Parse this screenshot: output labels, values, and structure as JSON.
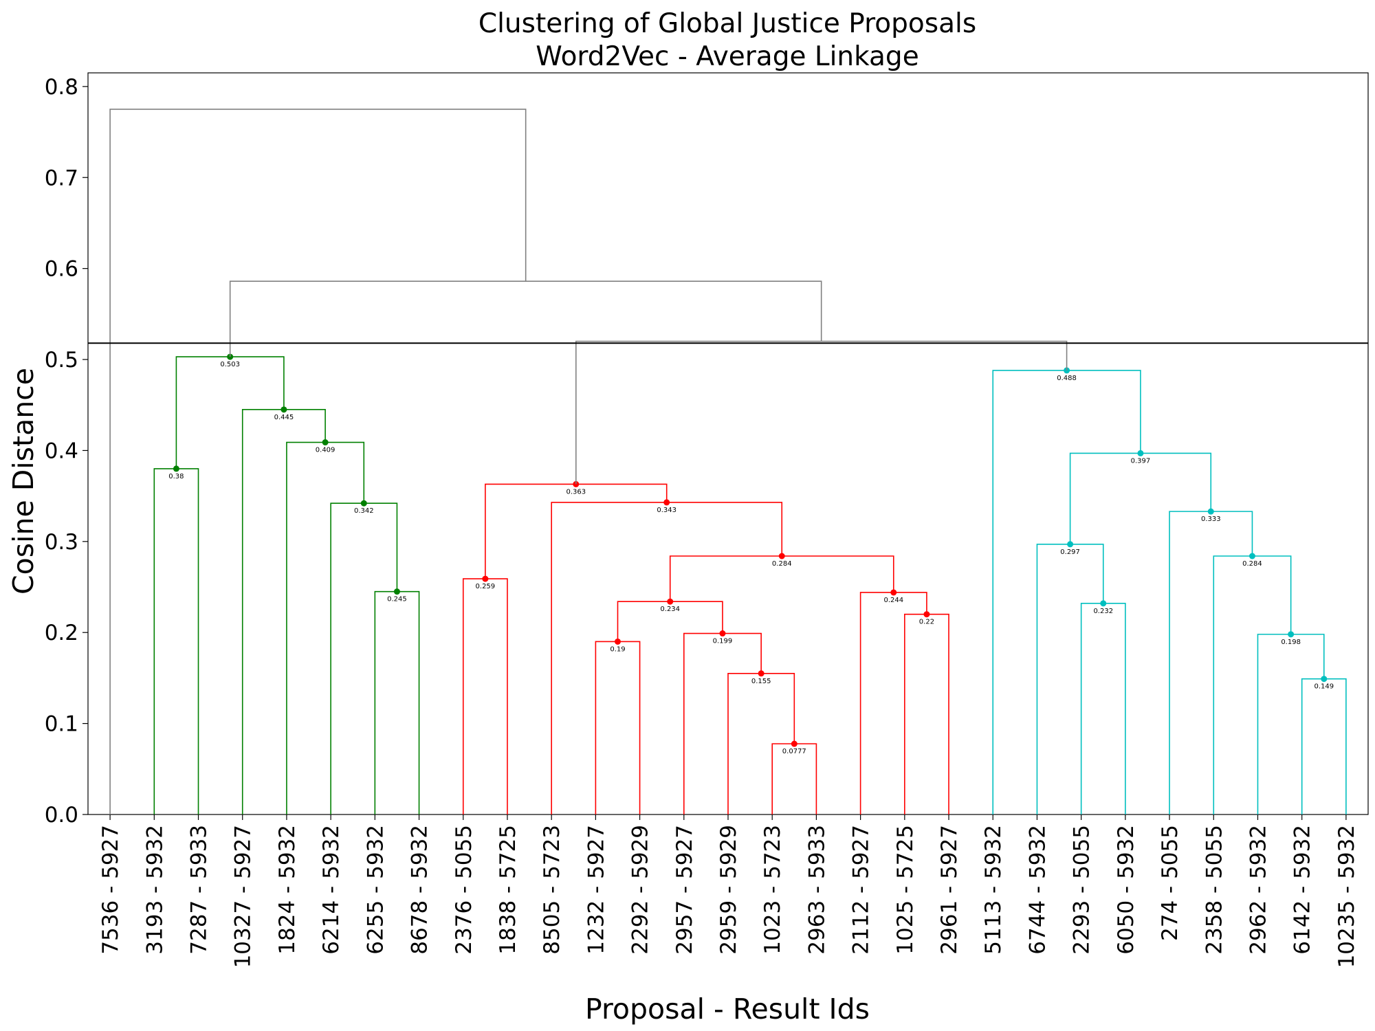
{
  "chart_data": {
    "type": "dendrogram",
    "title": "Clustering of Global Justice Proposals",
    "subtitle": "Word2Vec - Average Linkage",
    "xlabel": "Proposal - Result Ids",
    "ylabel": "Cosine Distance",
    "ylim": [
      0,
      0.815
    ],
    "yticks": [
      "0.0",
      "0.1",
      "0.2",
      "0.3",
      "0.4",
      "0.5",
      "0.6",
      "0.7",
      "0.8"
    ],
    "cut_height": 0.518,
    "grid": false,
    "colors": {
      "green": "#008000",
      "red": "#ff0000",
      "cyan": "#00bfbf",
      "gray": "#808080",
      "cut": "#000000"
    },
    "leaves": [
      "7536 - 5927",
      "3193 - 5932",
      "7287 - 5933",
      "10327 - 5927",
      "1824 - 5932",
      "6214 - 5932",
      "6255 - 5932",
      "8678 - 5932",
      "2376 - 5055",
      "1838 - 5725",
      "8505 - 5723",
      "1232 - 5927",
      "2292 - 5929",
      "2957 - 5927",
      "2959 - 5929",
      "1023 - 5723",
      "2963 - 5933",
      "2112 - 5927",
      "1025 - 5725",
      "2961 - 5927",
      "5113 - 5932",
      "6744 - 5932",
      "2293 - 5055",
      "6050 - 5932",
      "274 - 5055",
      "2358 - 5055",
      "2962 - 5932",
      "6142 - 5932",
      "10235 - 5932"
    ],
    "merges": [
      {
        "id": "g1",
        "left": 1,
        "right": 2,
        "height": 0.38,
        "label": "0.38",
        "color": "green",
        "marker": true
      },
      {
        "id": "g2",
        "left": 6,
        "right": 7,
        "height": 0.245,
        "label": "0.245",
        "color": "green",
        "marker": true
      },
      {
        "id": "g3",
        "left": 5,
        "right": "g2",
        "height": 0.342,
        "label": "0.342",
        "color": "green",
        "marker": true
      },
      {
        "id": "g4",
        "left": 4,
        "right": "g3",
        "height": 0.409,
        "label": "0.409",
        "color": "green",
        "marker": true
      },
      {
        "id": "g5",
        "left": 3,
        "right": "g4",
        "height": 0.445,
        "label": "0.445",
        "color": "green",
        "marker": true
      },
      {
        "id": "g6",
        "left": "g1",
        "right": "g5",
        "height": 0.503,
        "label": "0.503",
        "color": "green",
        "marker": true
      },
      {
        "id": "r1",
        "left": 8,
        "right": 9,
        "height": 0.259,
        "label": "0.259",
        "color": "red",
        "marker": true
      },
      {
        "id": "r2",
        "left": 11,
        "right": 12,
        "height": 0.19,
        "label": "0.19",
        "color": "red",
        "marker": true
      },
      {
        "id": "r3",
        "left": 15,
        "right": 16,
        "height": 0.0777,
        "label": "0.0777",
        "color": "red",
        "marker": true
      },
      {
        "id": "r4",
        "left": 14,
        "right": "r3",
        "height": 0.155,
        "label": "0.155",
        "color": "red",
        "marker": true
      },
      {
        "id": "r5",
        "left": 13,
        "right": "r4",
        "height": 0.199,
        "label": "0.199",
        "color": "red",
        "marker": true
      },
      {
        "id": "r6",
        "left": "r2",
        "right": "r5",
        "height": 0.234,
        "label": "0.234",
        "color": "red",
        "marker": true
      },
      {
        "id": "r7",
        "left": 18,
        "right": 19,
        "height": 0.22,
        "label": "0.22",
        "color": "red",
        "marker": true
      },
      {
        "id": "r8",
        "left": 17,
        "right": "r7",
        "height": 0.244,
        "label": "0.244",
        "color": "red",
        "marker": true
      },
      {
        "id": "r9",
        "left": "r6",
        "right": "r8",
        "height": 0.284,
        "label": "0.284",
        "color": "red",
        "marker": true
      },
      {
        "id": "r10",
        "left": 10,
        "right": "r9",
        "height": 0.343,
        "label": "0.343",
        "color": "red",
        "marker": true
      },
      {
        "id": "r11",
        "left": "r1",
        "right": "r10",
        "height": 0.363,
        "label": "0.363",
        "color": "red",
        "marker": true
      },
      {
        "id": "c1",
        "left": 22,
        "right": 23,
        "height": 0.232,
        "label": "0.232",
        "color": "cyan",
        "marker": true
      },
      {
        "id": "c2",
        "left": 21,
        "right": "c1",
        "height": 0.297,
        "label": "0.297",
        "color": "cyan",
        "marker": true
      },
      {
        "id": "c3",
        "left": 27,
        "right": 28,
        "height": 0.149,
        "label": "0.149",
        "color": "cyan",
        "marker": true
      },
      {
        "id": "c4",
        "left": 26,
        "right": "c3",
        "height": 0.198,
        "label": "0.198",
        "color": "cyan",
        "marker": true
      },
      {
        "id": "c5",
        "left": 25,
        "right": "c4",
        "height": 0.284,
        "label": "0.284",
        "color": "cyan",
        "marker": true
      },
      {
        "id": "c6",
        "left": 24,
        "right": "c5",
        "height": 0.333,
        "label": "0.333",
        "color": "cyan",
        "marker": true
      },
      {
        "id": "c7",
        "left": "c2",
        "right": "c6",
        "height": 0.397,
        "label": "0.397",
        "color": "cyan",
        "marker": true
      },
      {
        "id": "c8",
        "left": 20,
        "right": "c7",
        "height": 0.488,
        "label": "0.488",
        "color": "cyan",
        "marker": true
      },
      {
        "id": "k1",
        "left": "r11",
        "right": "c8",
        "height": 0.52,
        "label": "",
        "color": "gray",
        "marker": false
      },
      {
        "id": "k2",
        "left": "g6",
        "right": "k1",
        "height": 0.586,
        "label": "",
        "color": "gray",
        "marker": false
      },
      {
        "id": "k3",
        "left": 0,
        "right": "k2",
        "height": 0.775,
        "label": "",
        "color": "gray",
        "marker": false
      }
    ]
  }
}
